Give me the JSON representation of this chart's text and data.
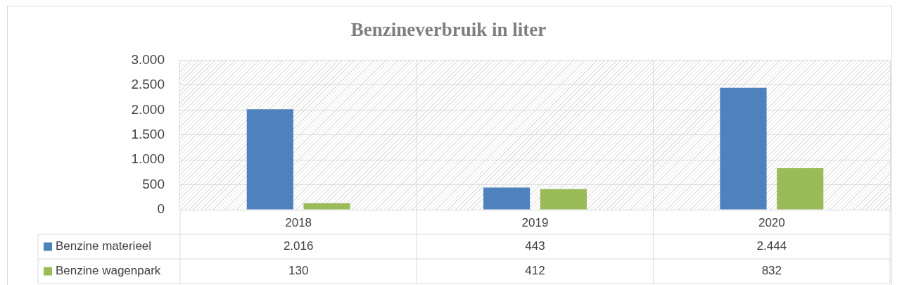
{
  "chart_data": {
    "type": "bar",
    "title": "Benzineverbruik in liter",
    "categories": [
      "2018",
      "2019",
      "2020"
    ],
    "series": [
      {
        "name": "Benzine materieel",
        "color": "#4f81bd",
        "values": [
          2016,
          443,
          2444
        ],
        "value_labels": [
          "2.016",
          "443",
          "2.444"
        ]
      },
      {
        "name": "Benzine wagenpark",
        "color": "#9bbb59",
        "values": [
          130,
          412,
          832
        ],
        "value_labels": [
          "130",
          "412",
          "832"
        ]
      }
    ],
    "ylim": [
      0,
      3000
    ],
    "yticks": [
      {
        "value": 0,
        "label": "0"
      },
      {
        "value": 500,
        "label": "500"
      },
      {
        "value": 1000,
        "label": "1.000"
      },
      {
        "value": 1500,
        "label": "1.500"
      },
      {
        "value": 2000,
        "label": "2.000"
      },
      {
        "value": 2500,
        "label": "2.500"
      },
      {
        "value": 3000,
        "label": "3.000"
      }
    ],
    "grid": true,
    "legend": "bottom"
  }
}
